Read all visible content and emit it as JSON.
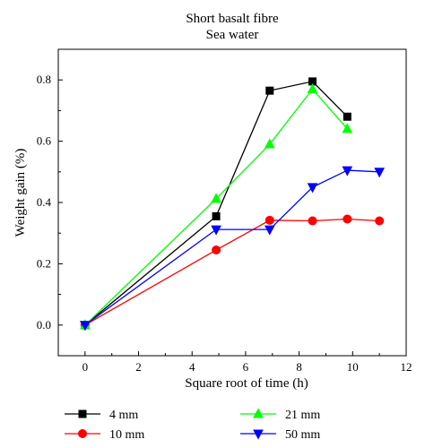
{
  "chart_data": {
    "type": "line",
    "title": "Short basalt fibre",
    "subtitle": "Sea water",
    "xlabel": "Square root of time (h)",
    "ylabel": "Weight gain (%)",
    "xlim": [
      -1,
      12
    ],
    "ylim": [
      -0.1,
      0.9
    ],
    "xticks": [
      0,
      2,
      4,
      6,
      8,
      10,
      12
    ],
    "yticks": [
      0.0,
      0.2,
      0.4,
      0.6,
      0.8
    ],
    "xtick_labels": [
      "0",
      "2",
      "4",
      "6",
      "8",
      "10",
      "12"
    ],
    "ytick_labels": [
      "0.0",
      "0.2",
      "0.4",
      "0.6",
      "0.8"
    ],
    "grid": false,
    "legend_position": "bottom",
    "series": [
      {
        "name": "4 mm",
        "color": "#000000",
        "marker": "square",
        "x": [
          0,
          4.9,
          6.9,
          8.5,
          9.8
        ],
        "y": [
          0.0,
          0.355,
          0.765,
          0.795,
          0.68
        ]
      },
      {
        "name": "10 mm",
        "color": "#ff0000",
        "marker": "circle",
        "x": [
          0,
          4.9,
          6.9,
          8.5,
          9.8,
          11.0
        ],
        "y": [
          0.0,
          0.245,
          0.342,
          0.34,
          0.346,
          0.34
        ]
      },
      {
        "name": "21 mm",
        "color": "#00ff00",
        "marker": "triangle-up",
        "x": [
          0,
          4.9,
          6.9,
          8.5,
          9.8
        ],
        "y": [
          0.0,
          0.412,
          0.59,
          0.77,
          0.64
        ]
      },
      {
        "name": "50 mm",
        "color": "#0000ff",
        "marker": "triangle-down",
        "x": [
          0,
          4.9,
          6.9,
          8.5,
          9.8,
          11.0
        ],
        "y": [
          0.0,
          0.312,
          0.312,
          0.45,
          0.505,
          0.5
        ]
      }
    ]
  }
}
